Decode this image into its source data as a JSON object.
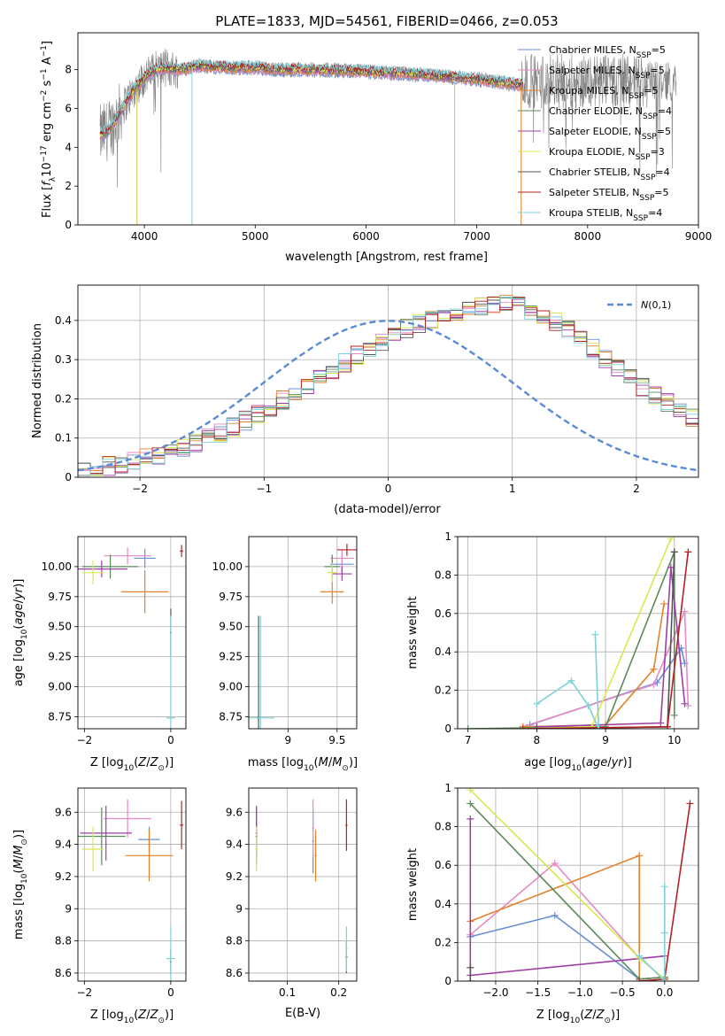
{
  "figure": {
    "title": "PLATE=1833, MJD=54561, FIBERID=0466, z=0.053"
  },
  "chart_data": [
    {
      "id": "spectrum",
      "type": "line",
      "xlabel": "wavelength [Angstrom, rest frame]",
      "ylabel": "Flux [f_λ10^-17 erg cm^-2 s^-1 A^-1]",
      "xlim": [
        3400,
        9000
      ],
      "ylim": [
        0,
        9.9
      ],
      "xticks": [
        4000,
        5000,
        6000,
        7000,
        8000,
        9000
      ],
      "yticks": [
        0,
        2,
        4,
        6,
        8
      ],
      "legend_position": "upper-right",
      "series": [
        {
          "name": "Chabrier MILES, N_SSP=5",
          "color": "#6a8fd8"
        },
        {
          "name": "Salpeter MILES, N_SSP=5",
          "color": "#e78ac3"
        },
        {
          "name": "Kroupa MILES, N_SSP=5",
          "color": "#e4822c"
        },
        {
          "name": "Chabrier ELODIE, N_SSP=4",
          "color": "#5a8a5a"
        },
        {
          "name": "Salpeter ELODIE, N_SSP=5",
          "color": "#9e3fa6"
        },
        {
          "name": "Kroupa ELODIE, N_SSP=3",
          "color": "#d9e84f"
        },
        {
          "name": "Chabrier STELIB, N_SSP=4",
          "color": "#555555"
        },
        {
          "name": "Salpeter STELIB, N_SSP=5",
          "color": "#b22222"
        },
        {
          "name": "Kroupa STELIB, N_SSP=4",
          "color": "#7fd1d9"
        }
      ],
      "data_color": "#808080",
      "continuum": {
        "x": [
          3600,
          3700,
          3800,
          3900,
          4000,
          4100,
          4200,
          4300,
          4400,
          4500,
          4600,
          4800,
          5000,
          5200,
          5500,
          5800,
          6000,
          6300,
          6600,
          6800,
          7000,
          7200,
          7400
        ],
        "y": [
          4.6,
          5.0,
          6.0,
          6.9,
          7.6,
          8.0,
          8.1,
          8.0,
          8.1,
          8.2,
          8.15,
          8.1,
          8.1,
          8.0,
          8.0,
          7.95,
          7.9,
          7.8,
          7.7,
          7.6,
          7.5,
          7.35,
          7.2
        ]
      },
      "dips": [
        3933,
        4430,
        6800,
        7400
      ]
    },
    {
      "id": "residuals",
      "type": "histogram",
      "xlabel": "(data-model)/error",
      "ylabel": "Normed distribution",
      "xlim": [
        -2.5,
        2.5
      ],
      "ylim": [
        0,
        0.49
      ],
      "xticks": [
        -2,
        -1,
        0,
        1,
        2
      ],
      "yticks": [
        0.0,
        0.1,
        0.2,
        0.3,
        0.4
      ],
      "legend": "N(0,1)",
      "legend_position": "upper-right",
      "normal_color": "#5b8ad6",
      "bins_start": -2.5,
      "bin_width": 0.1,
      "base_heights": [
        0.017,
        0.02,
        0.028,
        0.033,
        0.04,
        0.048,
        0.056,
        0.066,
        0.076,
        0.088,
        0.1,
        0.114,
        0.128,
        0.145,
        0.162,
        0.18,
        0.198,
        0.216,
        0.236,
        0.255,
        0.274,
        0.293,
        0.312,
        0.33,
        0.348,
        0.364,
        0.38,
        0.392,
        0.404,
        0.414,
        0.424,
        0.432,
        0.438,
        0.44,
        0.44,
        0.436,
        0.428,
        0.416,
        0.398,
        0.376,
        0.352,
        0.328,
        0.304,
        0.28,
        0.256,
        0.232,
        0.21,
        0.19,
        0.17,
        0.152
      ]
    },
    {
      "id": "age-vs-Z",
      "type": "scatter",
      "xlabel": "Z [log10(Z/Z_sun)]",
      "ylabel": "age  [log10(age/yr)]",
      "xlim": [
        -2.15,
        0.35
      ],
      "ylim": [
        8.65,
        10.25
      ],
      "xticks": [
        -2,
        0
      ],
      "yticks": [
        8.75,
        9.0,
        9.25,
        9.5,
        9.75,
        10.0
      ],
      "ytick_labels": [
        "8.75",
        "9.00",
        "9.25",
        "9.50",
        "9.75",
        "10.00"
      ]
    },
    {
      "id": "age-vs-mass",
      "type": "scatter",
      "xlabel": "mass [log10(M/M_sun)]",
      "xlim": [
        8.6,
        9.7
      ],
      "ylim": [
        8.65,
        10.25
      ],
      "xticks": [
        9.0,
        9.5
      ],
      "yticks": [
        8.75,
        9.0,
        9.25,
        9.5,
        9.75,
        10.0
      ],
      "ytick_labels": [
        "8.75",
        "9.00",
        "9.25",
        "9.50",
        "9.75",
        "10.00"
      ]
    },
    {
      "id": "weight-vs-age",
      "type": "line",
      "xlabel": "age  [log10(age/yr)]",
      "ylabel": "mass weight",
      "xlim": [
        6.85,
        10.35
      ],
      "ylim": [
        0,
        1.0
      ],
      "xticks": [
        7,
        8,
        9,
        10
      ],
      "yticks": [
        0.0,
        0.2,
        0.4,
        0.6,
        0.8,
        1.0
      ],
      "series": [
        {
          "color": "#6a8fd8",
          "x": [
            7.9,
            9.75,
            10.1,
            10.15
          ],
          "y": [
            0.02,
            0.24,
            0.42,
            0.34
          ]
        },
        {
          "color": "#e78ac3",
          "x": [
            7.8,
            9.7,
            10.15,
            10.2
          ],
          "y": [
            0.01,
            0.23,
            0.61,
            0.12
          ]
        },
        {
          "color": "#e4822c",
          "x": [
            7.8,
            9.0,
            9.7,
            9.85
          ],
          "y": [
            0.01,
            0.02,
            0.31,
            0.65
          ]
        },
        {
          "color": "#5a8a5a",
          "x": [
            7.0,
            9.0,
            10.0,
            10.0
          ],
          "y": [
            0.0,
            0.01,
            0.92,
            0.07
          ]
        },
        {
          "color": "#9e3fa6",
          "x": [
            8.0,
            9.8,
            9.95,
            10.15
          ],
          "y": [
            0.01,
            0.03,
            0.84,
            0.13
          ]
        },
        {
          "color": "#d9e84f",
          "x": [
            7.8,
            8.8,
            9.95
          ],
          "y": [
            0.0,
            0.01,
            0.99
          ]
        },
        {
          "color": "#555555",
          "x": [
            8.0,
            9.9,
            10.0
          ],
          "y": [
            0.0,
            0.01,
            0.92
          ]
        },
        {
          "color": "#b22222",
          "x": [
            7.8,
            9.9,
            10.2
          ],
          "y": [
            0.0,
            0.01,
            0.92
          ]
        },
        {
          "color": "#7fd1d9",
          "x": [
            8.0,
            8.5,
            8.75,
            8.9,
            8.85
          ],
          "y": [
            0.13,
            0.25,
            0.12,
            0.0,
            0.49
          ]
        }
      ]
    },
    {
      "id": "mass-vs-Z",
      "type": "scatter",
      "xlabel": "Z [log10(Z/Z_sun)]",
      "ylabel": "mass [log10(M/M_sun)]",
      "xlim": [
        -2.15,
        0.35
      ],
      "ylim": [
        8.55,
        9.75
      ],
      "xticks": [
        -2,
        0
      ],
      "yticks": [
        8.6,
        8.8,
        9.0,
        9.2,
        9.4,
        9.6
      ]
    },
    {
      "id": "mass-vs-EBV",
      "type": "scatter",
      "xlabel": "E(B-V)",
      "xlim": [
        0.025,
        0.235
      ],
      "ylim": [
        8.55,
        9.75
      ],
      "xticks": [
        0.1,
        0.2
      ],
      "yticks": [
        8.6,
        8.8,
        9.0,
        9.2,
        9.4,
        9.6
      ]
    },
    {
      "id": "weight-vs-Z",
      "type": "line",
      "xlabel": "Z [log10(Z/Z_sun)]",
      "ylabel": "mass weight",
      "xlim": [
        -2.45,
        0.4
      ],
      "ylim": [
        0,
        1.0
      ],
      "xticks": [
        -2.0,
        -1.5,
        -1.0,
        -0.5,
        0.0
      ],
      "xtick_labels": [
        "−2.0",
        "−1.5",
        "−1.0",
        "−0.5",
        "0.0"
      ],
      "yticks": [
        0.0,
        0.2,
        0.4,
        0.6,
        0.8,
        1.0
      ],
      "series": [
        {
          "color": "#6a8fd8",
          "x": [
            -2.3,
            -1.3,
            -0.3,
            0.0
          ],
          "y": [
            0.23,
            0.34,
            0.01,
            0.02
          ]
        },
        {
          "color": "#e78ac3",
          "x": [
            -2.3,
            -1.3,
            -0.3,
            0.0
          ],
          "y": [
            0.24,
            0.61,
            0.12,
            0.01
          ]
        },
        {
          "color": "#e4822c",
          "x": [
            -2.3,
            -0.3,
            -0.3,
            0.0
          ],
          "y": [
            0.31,
            0.65,
            0.01,
            0.02
          ]
        },
        {
          "color": "#5a8a5a",
          "x": [
            -2.3,
            -0.3,
            0.0
          ],
          "y": [
            0.92,
            0.01,
            0.02
          ]
        },
        {
          "color": "#9e3fa6",
          "x": [
            -2.3,
            -2.3,
            0.0
          ],
          "y": [
            0.84,
            0.03,
            0.13
          ]
        },
        {
          "color": "#d9e84f",
          "x": [
            -2.3,
            -0.3,
            0.0
          ],
          "y": [
            0.99,
            0.12,
            0.01
          ]
        },
        {
          "color": "#555555",
          "x": [
            -2.3,
            -2.3
          ],
          "y": [
            0.07,
            0.0
          ]
        },
        {
          "color": "#b22222",
          "x": [
            -0.3,
            0.0,
            0.3
          ],
          "y": [
            0.0,
            0.01,
            0.92
          ]
        },
        {
          "color": "#7fd1d9",
          "x": [
            -0.3,
            0.0,
            0.0,
            0.0
          ],
          "y": [
            0.13,
            0.0,
            0.25,
            0.49
          ]
        }
      ]
    }
  ],
  "scatter_points": {
    "colors": [
      "#6a8fd8",
      "#e78ac3",
      "#e4822c",
      "#5a8a5a",
      "#9e3fa6",
      "#d9e84f",
      "#555555",
      "#b22222",
      "#7fd1d9"
    ],
    "age_Z": [
      {
        "x": -0.6,
        "y": 10.07,
        "xe": 0.25,
        "ye": 0.08
      },
      {
        "x": -1.0,
        "y": 10.09,
        "xe": 0.55,
        "ye": 0.07
      },
      {
        "x": -0.6,
        "y": 9.79,
        "xe": 0.55,
        "ye": 0.18
      },
      {
        "x": -1.4,
        "y": 10.0,
        "xe": 0.65,
        "ye": 0.1
      },
      {
        "x": -1.6,
        "y": 9.98,
        "xe": 0.6,
        "ye": 0.07
      },
      {
        "x": -1.8,
        "y": 9.95,
        "xe": 0.25,
        "ye": 0.1
      },
      {
        "x": 0.0,
        "y": 9.45,
        "xe": 0.02,
        "ye": 0.2
      },
      {
        "x": 0.25,
        "y": 10.13,
        "xe": 0.04,
        "ye": 0.05
      },
      {
        "x": 0.0,
        "y": 8.74,
        "xe": 0.1,
        "ye": 0.85
      }
    ],
    "age_mass": [
      {
        "x": 9.55,
        "y": 10.02,
        "xe": 0.12,
        "ye": 0.08
      },
      {
        "x": 9.55,
        "y": 10.07,
        "xe": 0.12,
        "ye": 0.07
      },
      {
        "x": 9.45,
        "y": 9.79,
        "xe": 0.12,
        "ye": 0.1
      },
      {
        "x": 9.45,
        "y": 10.0,
        "xe": 0.08,
        "ye": 0.1
      },
      {
        "x": 9.55,
        "y": 9.94,
        "xe": 0.1,
        "ye": 0.06
      },
      {
        "x": 9.45,
        "y": 9.95,
        "xe": 0.05,
        "ye": 0.08
      },
      {
        "x": 8.7,
        "y": 8.74,
        "xe": 0.02,
        "ye": 0.85
      },
      {
        "x": 9.6,
        "y": 10.14,
        "xe": 0.1,
        "ye": 0.05
      },
      {
        "x": 8.72,
        "y": 8.74,
        "xe": 0.14,
        "ye": 0.85
      }
    ],
    "mass_Z": [
      {
        "x": -0.5,
        "y": 9.43,
        "xe": 0.25,
        "ye": 0.08
      },
      {
        "x": -1.0,
        "y": 9.56,
        "xe": 0.55,
        "ye": 0.12
      },
      {
        "x": -0.5,
        "y": 9.33,
        "xe": 0.55,
        "ye": 0.16
      },
      {
        "x": -1.6,
        "y": 9.45,
        "xe": 0.55,
        "ye": 0.18
      },
      {
        "x": -1.5,
        "y": 9.47,
        "xe": 0.6,
        "ye": 0.17
      },
      {
        "x": -1.8,
        "y": 9.37,
        "xe": 0.25,
        "ye": 0.14
      },
      {
        "x": 0.0,
        "y": 8.67,
        "xe": 0.02,
        "ye": 0.08
      },
      {
        "x": 0.25,
        "y": 9.52,
        "xe": 0.04,
        "ye": 0.15
      },
      {
        "x": 0.0,
        "y": 8.69,
        "xe": 0.1,
        "ye": 0.2
      }
    ],
    "mass_ebv": [
      {
        "x": 0.15,
        "y": 9.42,
        "xe": 0.002,
        "ye": 0.2
      },
      {
        "x": 0.15,
        "y": 9.5,
        "xe": 0.002,
        "ye": 0.18
      },
      {
        "x": 0.155,
        "y": 9.33,
        "xe": 0.002,
        "ye": 0.16
      },
      {
        "x": 0.04,
        "y": 9.45,
        "xe": 0.002,
        "ye": 0.18
      },
      {
        "x": 0.04,
        "y": 9.47,
        "xe": 0.002,
        "ye": 0.17
      },
      {
        "x": 0.04,
        "y": 9.37,
        "xe": 0.002,
        "ye": 0.14
      },
      {
        "x": 0.215,
        "y": 8.7,
        "xe": 0.002,
        "ye": 0.1
      },
      {
        "x": 0.215,
        "y": 9.52,
        "xe": 0.002,
        "ye": 0.16
      },
      {
        "x": 0.215,
        "y": 8.75,
        "xe": 0.002,
        "ye": 0.14
      }
    ]
  }
}
